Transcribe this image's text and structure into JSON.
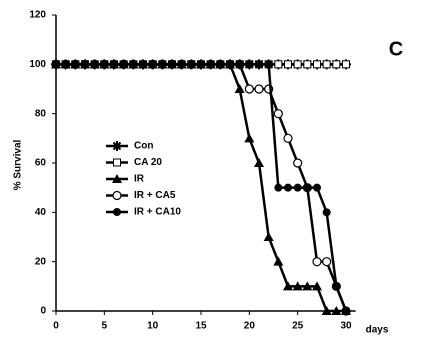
{
  "chart_data": {
    "type": "line",
    "label": "C",
    "xlabel": "days",
    "ylabel": "% Survival",
    "x": [
      0,
      1,
      2,
      3,
      4,
      5,
      6,
      7,
      8,
      9,
      10,
      11,
      12,
      13,
      14,
      15,
      16,
      17,
      18,
      19,
      20,
      21,
      22,
      23,
      24,
      25,
      26,
      27,
      28,
      29,
      30
    ],
    "xlim": [
      0,
      31
    ],
    "xticks": [
      0,
      5,
      10,
      15,
      20,
      25,
      30
    ],
    "ylim": [
      0,
      120
    ],
    "yticks": [
      0,
      20,
      40,
      60,
      80,
      100,
      120
    ],
    "series": [
      {
        "name": "Con",
        "color": "#000000",
        "marker": "star",
        "values": [
          100,
          100,
          100,
          100,
          100,
          100,
          100,
          100,
          100,
          100,
          100,
          100,
          100,
          100,
          100,
          100,
          100,
          100,
          100,
          100,
          100,
          100,
          100,
          100,
          100,
          100,
          100,
          100,
          100,
          100,
          100
        ]
      },
      {
        "name": "CA 20",
        "color": "#000000",
        "marker": "square-open",
        "values": [
          100,
          100,
          100,
          100,
          100,
          100,
          100,
          100,
          100,
          100,
          100,
          100,
          100,
          100,
          100,
          100,
          100,
          100,
          100,
          100,
          100,
          100,
          100,
          100,
          100,
          100,
          100,
          100,
          100,
          100,
          100
        ]
      },
      {
        "name": "IR",
        "color": "#000000",
        "marker": "triangle",
        "values": [
          100,
          100,
          100,
          100,
          100,
          100,
          100,
          100,
          100,
          100,
          100,
          100,
          100,
          100,
          100,
          100,
          100,
          100,
          100,
          90,
          70,
          60,
          30,
          20,
          10,
          10,
          10,
          10,
          0,
          0,
          0
        ]
      },
      {
        "name": "IR + CA5",
        "color": "#000000",
        "marker": "circle-open",
        "values": [
          100,
          100,
          100,
          100,
          100,
          100,
          100,
          100,
          100,
          100,
          100,
          100,
          100,
          100,
          100,
          100,
          100,
          100,
          100,
          100,
          90,
          90,
          90,
          80,
          70,
          60,
          50,
          20,
          20,
          10,
          0
        ]
      },
      {
        "name": "IR + CA10",
        "color": "#000000",
        "marker": "circle",
        "values": [
          100,
          100,
          100,
          100,
          100,
          100,
          100,
          100,
          100,
          100,
          100,
          100,
          100,
          100,
          100,
          100,
          100,
          100,
          100,
          100,
          100,
          100,
          100,
          50,
          50,
          50,
          50,
          50,
          40,
          10,
          0
        ]
      }
    ]
  }
}
